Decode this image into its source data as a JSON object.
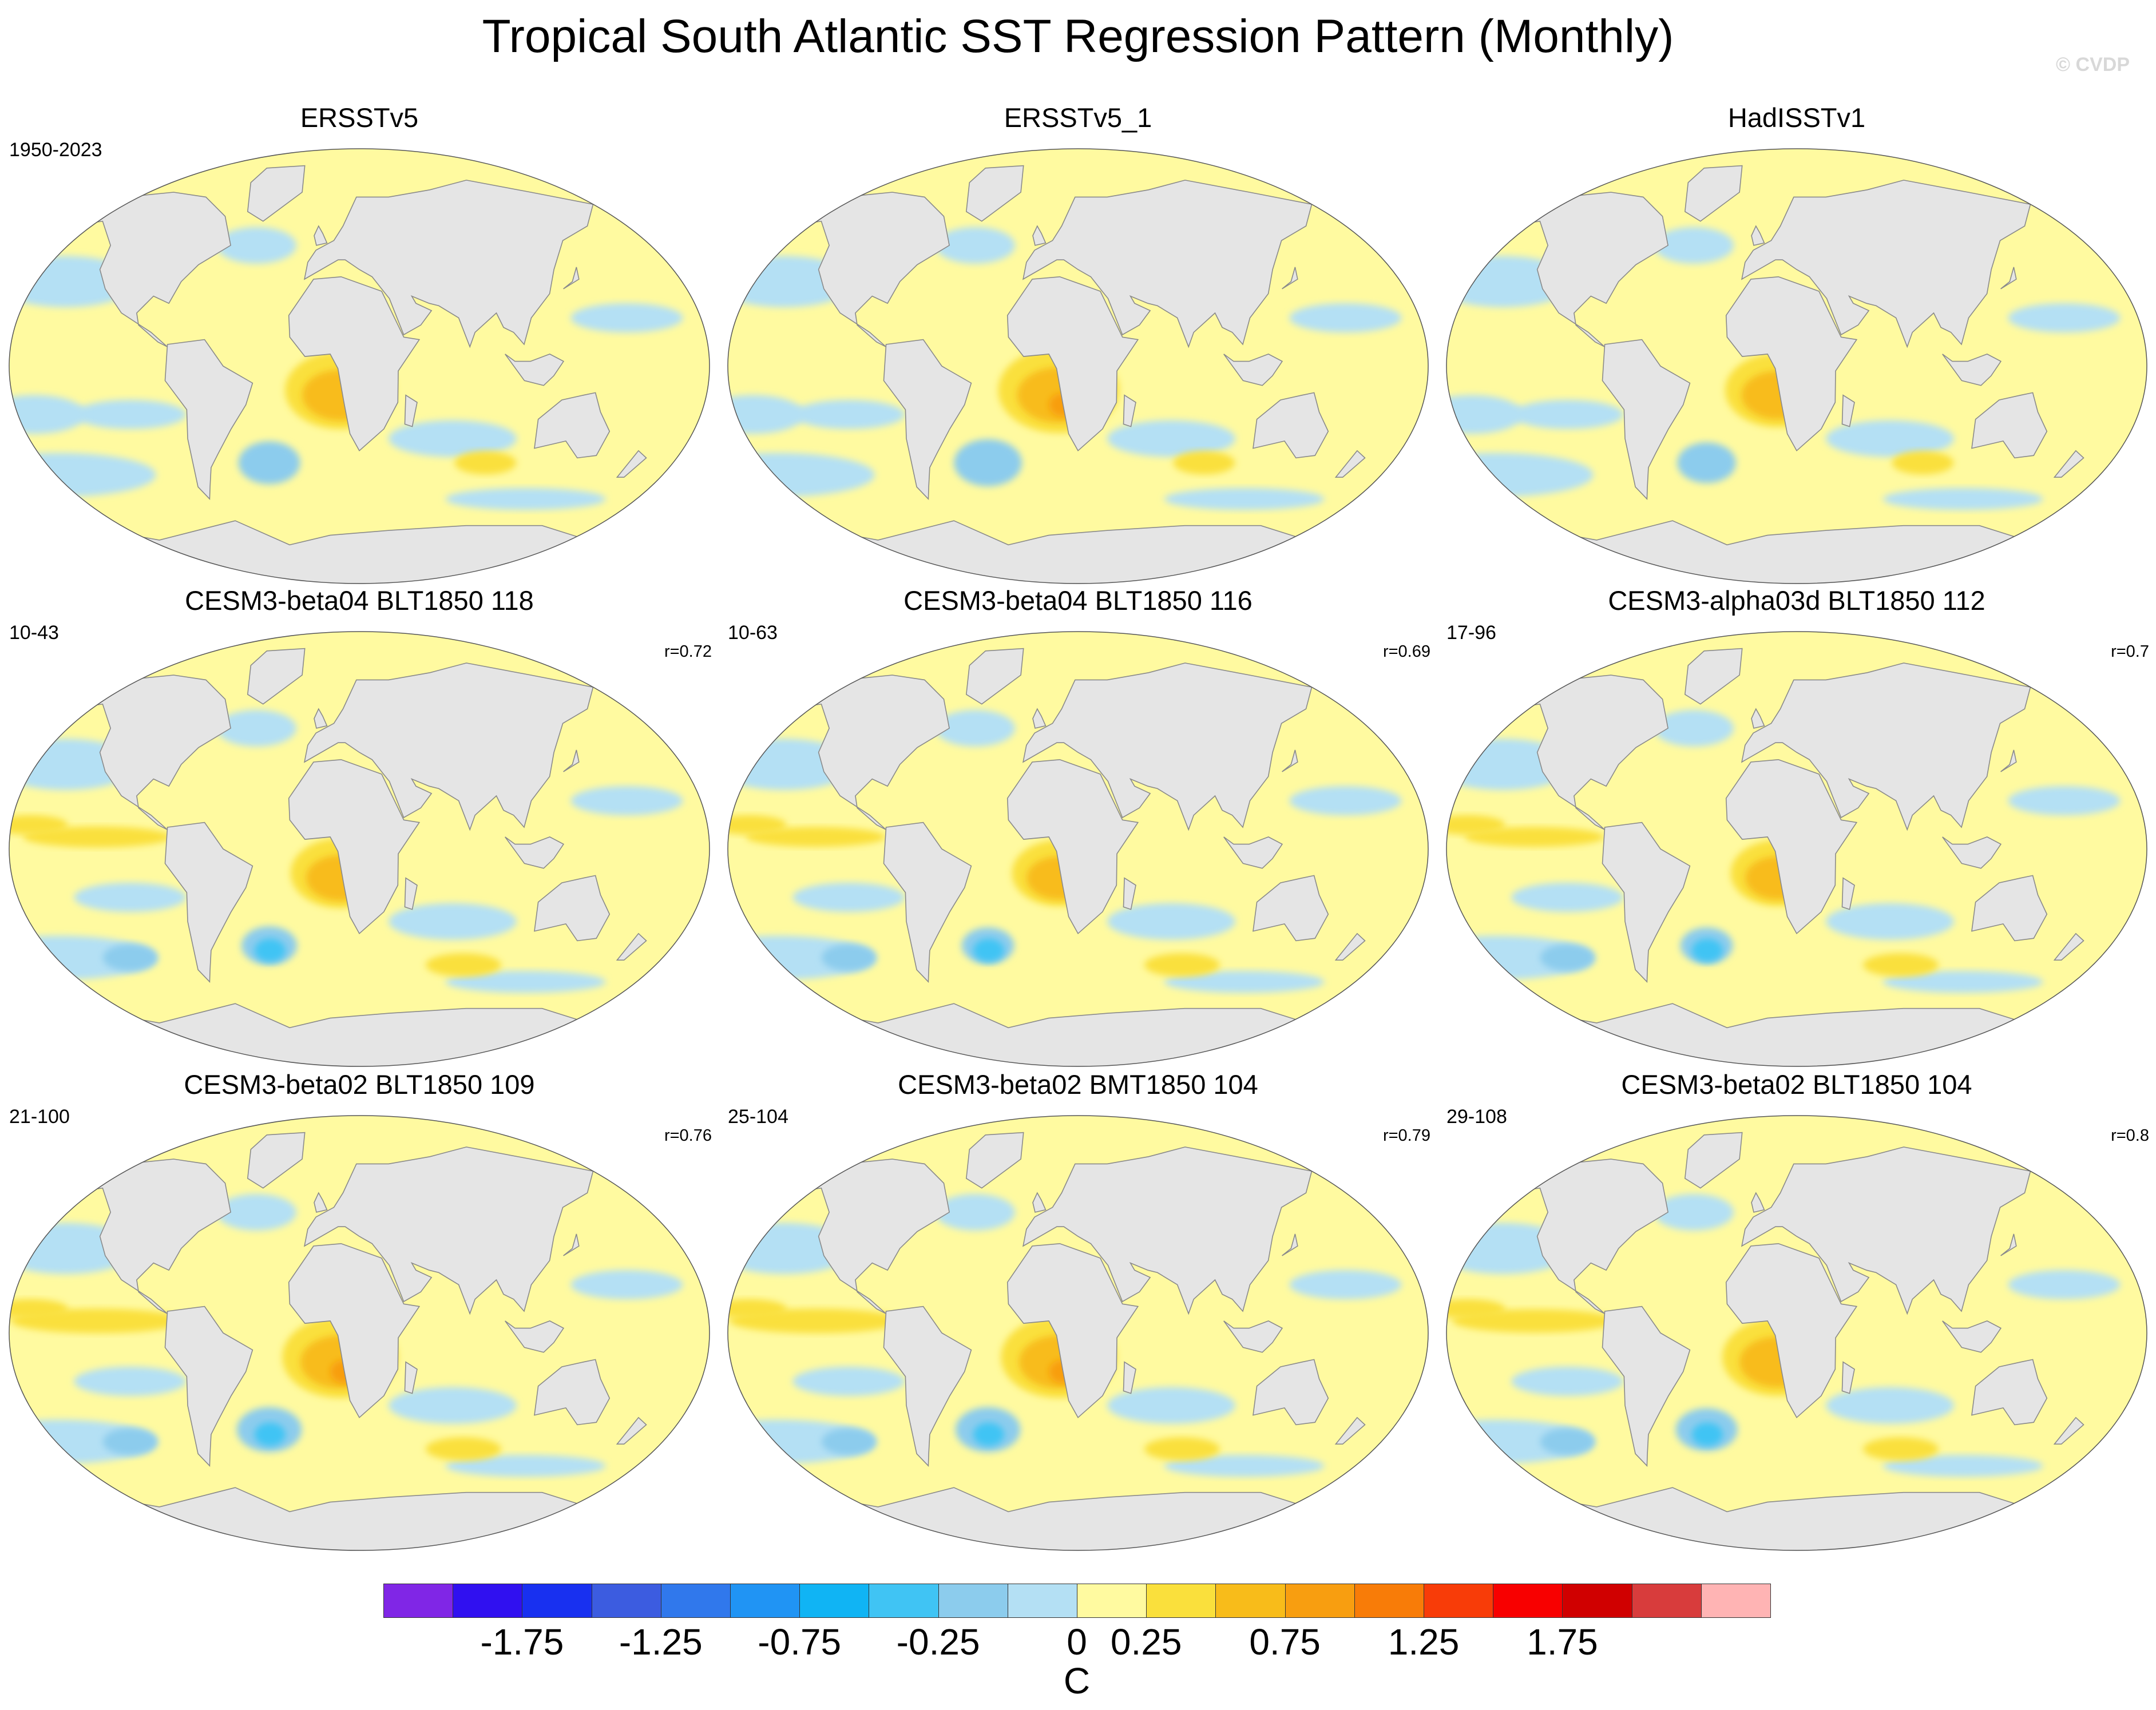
{
  "title": "Tropical South Atlantic SST Regression Pattern (Monthly)",
  "watermark": "© CVDP",
  "colors": {
    "land": "#e5e5e5",
    "coast": "#8a8a8a",
    "near_zero_positive": "#fffaa0",
    "near_zero_negative": "#b4e0f4",
    "map_outline": "#555555"
  },
  "panels": [
    {
      "title": "ERSSTv5",
      "years": "1950-2023",
      "corr": "",
      "pattern": "obs",
      "strength": 1.0
    },
    {
      "title": "ERSSTv5_1",
      "years": "",
      "corr": "",
      "pattern": "obs",
      "strength": 1.1
    },
    {
      "title": "HadISSTv1",
      "years": "",
      "corr": "",
      "pattern": "obs",
      "strength": 0.95
    },
    {
      "title": "CESM3-beta04 BLT1850 118",
      "years": "10-43",
      "corr": "r=0.72",
      "pattern": "model",
      "strength": 0.9
    },
    {
      "title": "CESM3-beta04 BLT1850 116",
      "years": "10-63",
      "corr": "r=0.69",
      "pattern": "model",
      "strength": 0.85
    },
    {
      "title": "CESM3-alpha03d BLT1850 112",
      "years": "17-96",
      "corr": "r=0.7",
      "pattern": "model",
      "strength": 0.85
    },
    {
      "title": "CESM3-beta02 BLT1850 109",
      "years": "21-100",
      "corr": "r=0.76",
      "pattern": "model",
      "strength": 1.05
    },
    {
      "title": "CESM3-beta02 BMT1850 104",
      "years": "25-104",
      "corr": "r=0.79",
      "pattern": "model",
      "strength": 1.05
    },
    {
      "title": "CESM3-beta02 BLT1850 104",
      "years": "29-108",
      "corr": "r=0.8",
      "pattern": "model",
      "strength": 1.0
    }
  ],
  "colorbar": {
    "units": "C",
    "colors": [
      "#8026e6",
      "#3010f0",
      "#1830f0",
      "#3c5ce0",
      "#3078ec",
      "#2094f4",
      "#10b4f4",
      "#40c4f4",
      "#8ccced",
      "#b4e0f4",
      "#fffaa0",
      "#fae03c",
      "#f8bc1a",
      "#f89e10",
      "#f87c08",
      "#f83c08",
      "#f80000",
      "#d00000",
      "#d83c3c",
      "#ffb4b4"
    ],
    "labels": [
      "-1.75",
      "-1.25",
      "-0.75",
      "-0.25",
      "0",
      "0.25",
      "0.75",
      "1.25",
      "1.75"
    ]
  }
}
